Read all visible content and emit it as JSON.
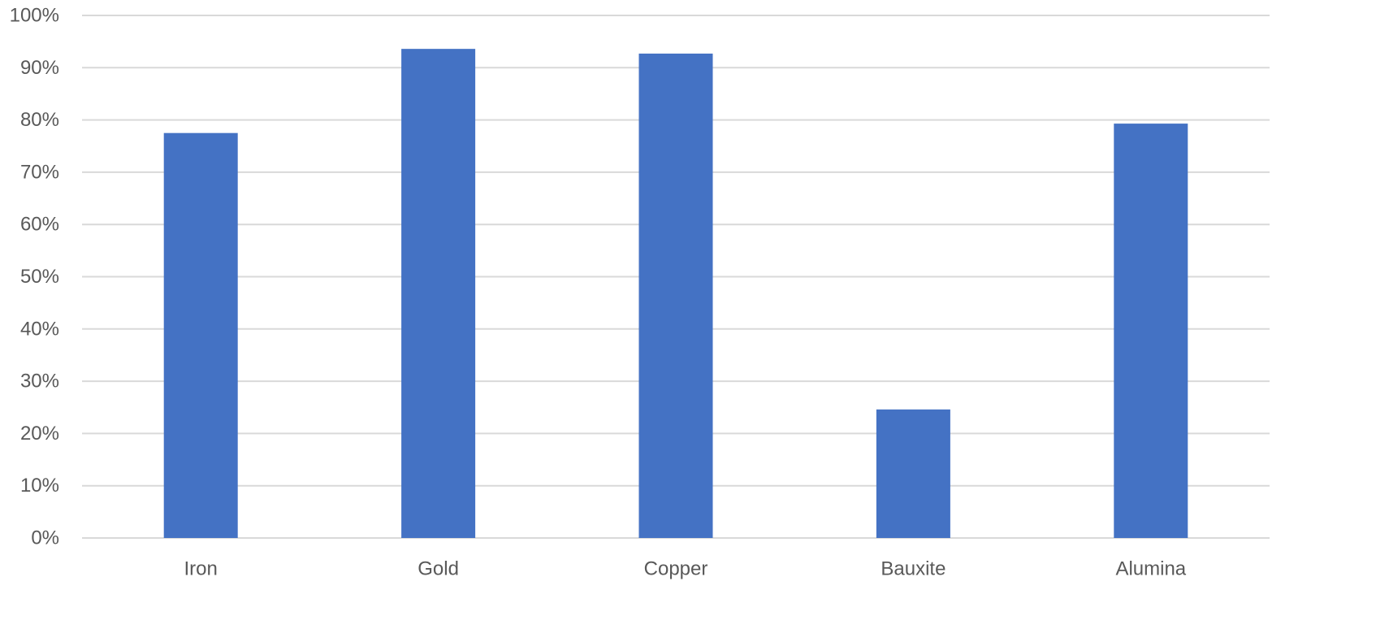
{
  "chart_data": {
    "type": "bar",
    "title": "",
    "xlabel": "",
    "ylabel": "",
    "categories": [
      "Iron",
      "Gold",
      "Copper",
      "Bauxite",
      "Alumina"
    ],
    "series": [
      {
        "values": [
          0.775,
          0.936,
          0.927,
          0.246,
          0.793
        ],
        "color": "#4472c4"
      }
    ],
    "ylim": [
      0,
      1
    ],
    "y_ticks": [
      0,
      0.1,
      0.2,
      0.3,
      0.4,
      0.5,
      0.6,
      0.7,
      0.8,
      0.9,
      1.0
    ],
    "y_tick_labels": [
      "0%",
      "10%",
      "20%",
      "30%",
      "40%",
      "50%",
      "60%",
      "70%",
      "80%",
      "90%",
      "100%"
    ],
    "grid": true,
    "legend": "none",
    "colors": {
      "bar": "#4472c4",
      "grid": "#d9d9d9",
      "tick_text": "#595959"
    }
  }
}
